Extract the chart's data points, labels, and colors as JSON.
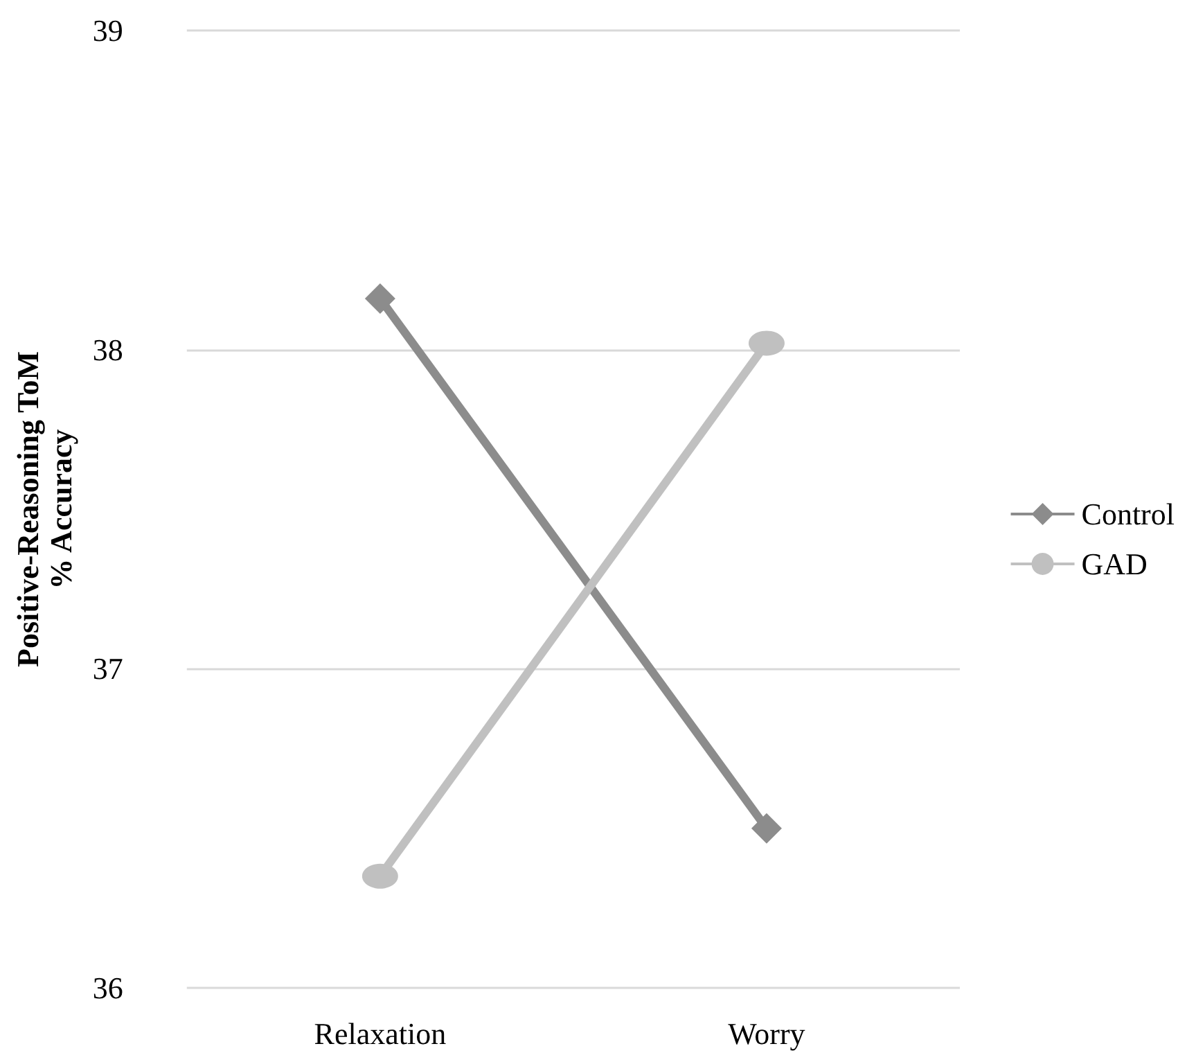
{
  "chart_data": {
    "type": "line",
    "ylabel": "Positive-Reasoning ToM\n% Accuracy",
    "categories": [
      "Relaxation",
      "Worry"
    ],
    "series": [
      {
        "name": "Control",
        "color": "#8c8c8c",
        "marker": "diamond",
        "values": [
          38.16,
          36.5
        ]
      },
      {
        "name": "GAD",
        "color": "#c0c0c0",
        "marker": "circle",
        "values": [
          36.35,
          38.02
        ]
      }
    ],
    "ylim": [
      36,
      39
    ],
    "yticks": [
      36,
      37,
      38,
      39
    ],
    "grid": "y",
    "legend": "right"
  }
}
